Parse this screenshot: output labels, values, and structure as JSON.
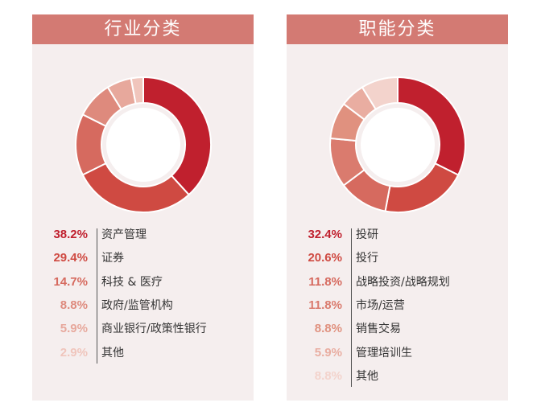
{
  "chart_data": [
    {
      "type": "pie",
      "title": "行业分类",
      "categories": [
        "资产管理",
        "证券",
        "科技 & 医疗",
        "政府/监管机构",
        "商业银行/政策性银行",
        "其他"
      ],
      "values": [
        38.2,
        29.4,
        14.7,
        8.8,
        5.9,
        2.9
      ],
      "value_labels": [
        "38.2%",
        "29.4%",
        "14.7%",
        "8.8%",
        "5.9%",
        "2.9%"
      ],
      "colors": [
        "#c0202e",
        "#cf4a42",
        "#d66a5f",
        "#de8a7d",
        "#e7a89c",
        "#f0c5bc"
      ],
      "legend": "bottom"
    },
    {
      "type": "pie",
      "title": "职能分类",
      "categories": [
        "投研",
        "投行",
        "战略投资/战略规划",
        "市场/运营",
        "销售交易",
        "管理培训生",
        "其他"
      ],
      "values": [
        32.4,
        20.6,
        11.8,
        11.8,
        8.8,
        5.9,
        8.8
      ],
      "value_labels": [
        "32.4%",
        "20.6%",
        "11.8%",
        "11.8%",
        "8.8%",
        "5.9%",
        "8.8%"
      ],
      "colors": [
        "#c0202e",
        "#cf4a42",
        "#d66a5f",
        "#da7b6e",
        "#e0917f",
        "#e9ada1",
        "#f3d3cc"
      ],
      "legend": "bottom"
    }
  ]
}
